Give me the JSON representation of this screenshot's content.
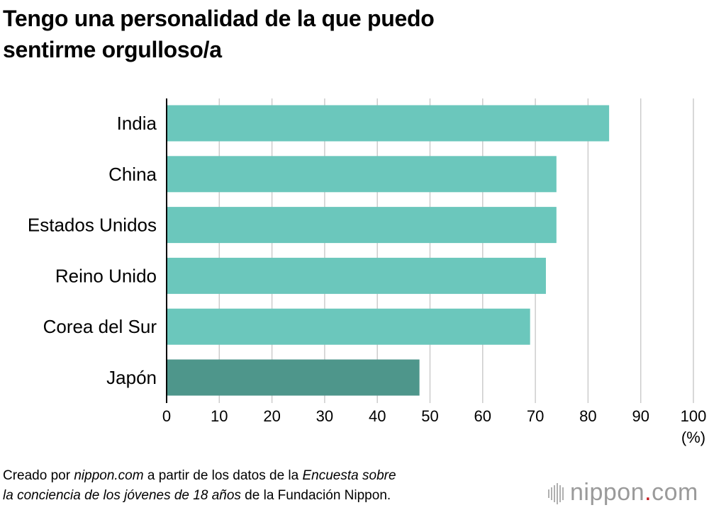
{
  "chart_data": {
    "type": "bar",
    "orientation": "horizontal",
    "title_lines": [
      "Tengo una personalidad de la que puedo",
      "sentirme orgulloso/a"
    ],
    "categories": [
      "India",
      "China",
      "Estados Unidos",
      "Reino Unido",
      "Corea del Sur",
      "Japón"
    ],
    "values": [
      84,
      74,
      74,
      72,
      69,
      48
    ],
    "xlim": [
      0,
      100
    ],
    "xticks": [
      "0",
      "10",
      "20",
      "30",
      "40",
      "50",
      "60",
      "70",
      "80",
      "90",
      "100"
    ],
    "xunit": "(%)",
    "grid": true,
    "colors": {
      "default_bar": "#6bc7bc",
      "highlight_bar": "#4e968b",
      "highlight_category": "Japón",
      "gridline": "#cccccc",
      "axis": "#000000"
    }
  },
  "footer": {
    "line1": [
      {
        "text": "Creado por ",
        "italic": false
      },
      {
        "text": "nippon.com",
        "italic": true
      },
      {
        "text": " a partir de los datos de la ",
        "italic": false
      },
      {
        "text": "Encuesta sobre",
        "italic": true
      }
    ],
    "line2": [
      {
        "text": "la conciencia de los jóvenes de 18 años",
        "italic": true
      },
      {
        "text": " de la Fundación Nippon.",
        "italic": false
      }
    ]
  },
  "logo": {
    "prefix": "nippon",
    "dot": ".",
    "suffix": "com",
    "icon": "nippon-logo-mark-icon",
    "dot_color": "#c4161c"
  }
}
